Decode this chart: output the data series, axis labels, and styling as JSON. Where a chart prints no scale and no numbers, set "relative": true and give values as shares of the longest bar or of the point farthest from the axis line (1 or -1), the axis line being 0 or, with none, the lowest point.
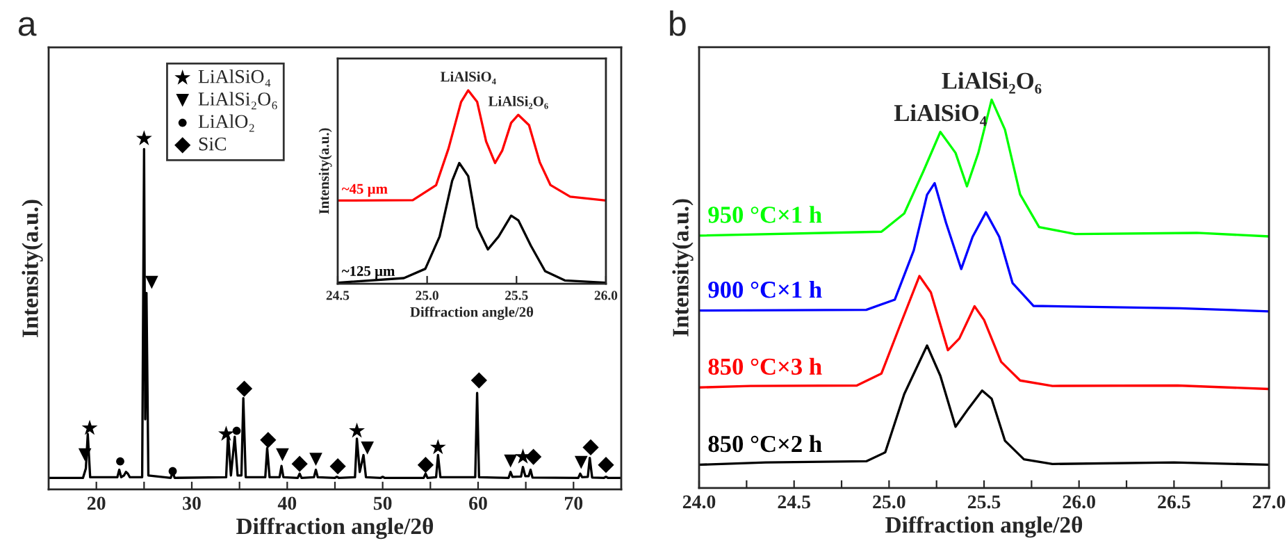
{
  "chart_data": [
    {
      "type": "line",
      "title": "a",
      "xlabel": "Diffraction angle/2θ",
      "ylabel": "Intensity(a.u.)",
      "relative": true,
      "xlim": [
        15,
        75
      ],
      "xticks": [
        20,
        {
          "value": 25,
          "label": null
        },
        30,
        {
          "value": 35,
          "label": null
        },
        40,
        {
          "value": 45,
          "label": null
        },
        50,
        {
          "value": 55,
          "label": null
        },
        60,
        {
          "value": 65,
          "label": null
        },
        70
      ],
      "legend": "top left",
      "series": [
        {
          "color": "#000000",
          "x": [
            15.0,
            18.6,
            18.9,
            19.1,
            19.35,
            22.2,
            22.4,
            22.6,
            22.9,
            23.1,
            23.3,
            23.5,
            24.8,
            25.0,
            25.12,
            25.25,
            25.45,
            27.8,
            28.0,
            28.2,
            33.6,
            33.8,
            34.1,
            34.5,
            34.8,
            35.2,
            35.4,
            35.65,
            37.7,
            37.9,
            38.15,
            39.2,
            39.4,
            39.6,
            41.1,
            41.3,
            41.5,
            42.8,
            43.0,
            43.2,
            45.0,
            45.2,
            45.4,
            47.1,
            47.3,
            47.6,
            47.99,
            48.25,
            49.8,
            50.0,
            50.2,
            54.3,
            54.5,
            54.7,
            55.6,
            55.8,
            56.05,
            59.7,
            59.9,
            60.1,
            63.2,
            63.4,
            63.6,
            64.5,
            64.7,
            64.95,
            65.3,
            65.5,
            65.7,
            70.5,
            70.7,
            70.9,
            71.5,
            71.7,
            71.95,
            73.2,
            73.4,
            73.6,
            75.0
          ],
          "values": [
            0.033,
            0.033,
            0.06,
            0.158,
            0.035,
            0.035,
            0.056,
            0.035,
            0.04,
            0.05,
            0.045,
            0.035,
            0.035,
            0.97,
            0.2,
            0.56,
            0.04,
            0.033,
            0.05,
            0.033,
            0.035,
            0.158,
            0.04,
            0.15,
            0.04,
            0.04,
            0.26,
            0.035,
            0.035,
            0.118,
            0.035,
            0.035,
            0.067,
            0.035,
            0.033,
            0.045,
            0.033,
            0.035,
            0.056,
            0.035,
            0.033,
            0.036,
            0.033,
            0.035,
            0.145,
            0.05,
            0.098,
            0.035,
            0.033,
            0.036,
            0.033,
            0.033,
            0.045,
            0.033,
            0.035,
            0.098,
            0.035,
            0.035,
            0.275,
            0.035,
            0.033,
            0.05,
            0.036,
            0.037,
            0.064,
            0.038,
            0.038,
            0.056,
            0.034,
            0.033,
            0.045,
            0.035,
            0.036,
            0.09,
            0.034,
            0.033,
            0.036,
            0.033,
            0.033
          ]
        },
        {
          "type": "scatter",
          "name": "LiAlSiO₄",
          "marker": "star",
          "color": "#000000",
          "x": [
            19.3,
            25.0,
            33.6,
            47.3,
            55.8,
            64.7
          ],
          "values": [
            0.175,
            1.0,
            0.158,
            0.167,
            0.12,
            0.093
          ]
        },
        {
          "type": "scatter",
          "name": "LiAlSi₂O₆",
          "marker": "triangle",
          "color": "#000000",
          "x": [
            18.8,
            25.8,
            39.5,
            43.0,
            48.4,
            63.4,
            70.8
          ],
          "values": [
            0.099,
            0.59,
            0.099,
            0.086,
            0.118,
            0.081,
            0.077
          ]
        },
        {
          "type": "scatter",
          "name": "LiAlO₂",
          "marker": "circle",
          "color": "#000000",
          "x": [
            22.5,
            28.0,
            34.7
          ],
          "values": [
            0.08,
            0.052,
            0.167
          ]
        },
        {
          "type": "scatter",
          "name": "SiC",
          "marker": "diamond",
          "color": "#000000",
          "x": [
            35.5,
            38.0,
            41.3,
            45.3,
            54.5,
            60.1,
            65.8,
            71.8,
            73.4
          ],
          "values": [
            0.287,
            0.141,
            0.073,
            0.066,
            0.07,
            0.311,
            0.093,
            0.12,
            0.07
          ]
        }
      ]
    },
    {
      "type": "line",
      "xlabel": "Diffraction angle/2θ",
      "ylabel": "Intensity(a.u.)",
      "relative": true,
      "xlim": [
        24.5,
        26.0
      ],
      "xticks": [
        24.5,
        {
          "value": 25.0,
          "label": "25.0"
        },
        25.5,
        {
          "value": 26.0,
          "label": "26.0"
        }
      ],
      "annotations": [
        {
          "text": "LiAlSiO₄",
          "x": 25.23,
          "y": 1.0
        },
        {
          "text": "LiAlSi₂O₆",
          "x": 25.51,
          "y": 0.873
        }
      ],
      "series": [
        {
          "name": "~45 µm",
          "color": "#ff0000",
          "x": [
            24.5,
            24.92,
            25.05,
            25.12,
            25.19,
            25.23,
            25.28,
            25.33,
            25.38,
            25.42,
            25.47,
            25.51,
            25.57,
            25.63,
            25.69,
            25.8,
            26.0
          ],
          "values": [
            0.43,
            0.432,
            0.509,
            0.7,
            0.94,
            1.0,
            0.94,
            0.736,
            0.624,
            0.688,
            0.832,
            0.873,
            0.82,
            0.628,
            0.51,
            0.45,
            0.43
          ]
        },
        {
          "name": "~125 µm",
          "color": "#000000",
          "x": [
            24.5,
            24.87,
            24.99,
            25.07,
            25.14,
            25.18,
            25.23,
            25.28,
            25.34,
            25.4,
            25.47,
            25.51,
            25.58,
            25.66,
            25.77,
            26.0
          ],
          "values": [
            0.005,
            0.029,
            0.077,
            0.244,
            0.532,
            0.624,
            0.556,
            0.292,
            0.177,
            0.244,
            0.352,
            0.328,
            0.197,
            0.065,
            0.017,
            0.005
          ]
        }
      ]
    },
    {
      "type": "line",
      "title": "b",
      "xlabel": "Diffraction angle/2θ",
      "ylabel": "Intensity(a.u.)",
      "relative": true,
      "xlim": [
        24.0,
        27.0
      ],
      "xticks": [
        {
          "value": 24.0,
          "label": "24.0"
        },
        {
          "value": 24.25,
          "label": null
        },
        24.5,
        {
          "value": 24.75,
          "label": null
        },
        {
          "value": 25.0,
          "label": "25.0"
        },
        {
          "value": 25.25,
          "label": null
        },
        25.5,
        {
          "value": 25.75,
          "label": null
        },
        {
          "value": 26.0,
          "label": "26.0"
        },
        {
          "value": 26.25,
          "label": null
        },
        26.5,
        {
          "value": 26.75,
          "label": null
        },
        {
          "value": 27.0,
          "label": "27.0"
        }
      ],
      "annotations": [
        {
          "text": "LiAlSiO₄",
          "x": 25.27,
          "y": 0.917
        },
        {
          "text": "LiAlSi₂O₆",
          "x": 25.54,
          "y": 1.0
        }
      ],
      "series": [
        {
          "name": "850 °C×2 h",
          "color": "#000000",
          "x": [
            24.0,
            24.35,
            24.88,
            24.98,
            25.08,
            25.2,
            25.27,
            25.35,
            25.42,
            25.49,
            25.54,
            25.61,
            25.71,
            25.86,
            26.5,
            27.0
          ],
          "values": [
            0.06,
            0.066,
            0.069,
            0.092,
            0.242,
            0.367,
            0.289,
            0.158,
            0.206,
            0.251,
            0.23,
            0.122,
            0.074,
            0.062,
            0.066,
            0.06
          ]
        },
        {
          "name": "850 °C×3 h",
          "color": "#ff0000",
          "x": [
            24.0,
            24.27,
            24.83,
            24.96,
            25.05,
            25.16,
            25.22,
            25.31,
            25.37,
            25.45,
            25.5,
            25.59,
            25.69,
            25.86,
            26.52,
            27.0
          ],
          "values": [
            0.259,
            0.263,
            0.264,
            0.295,
            0.409,
            0.546,
            0.504,
            0.355,
            0.385,
            0.468,
            0.433,
            0.325,
            0.277,
            0.263,
            0.264,
            0.255
          ]
        },
        {
          "name": "900 °C×1 h",
          "color": "#0000ff",
          "x": [
            24.0,
            24.88,
            25.03,
            25.13,
            25.2,
            25.24,
            25.3,
            25.38,
            25.44,
            25.51,
            25.58,
            25.65,
            25.76,
            26.53,
            27.0
          ],
          "values": [
            0.457,
            0.459,
            0.485,
            0.612,
            0.755,
            0.785,
            0.683,
            0.564,
            0.647,
            0.71,
            0.647,
            0.528,
            0.469,
            0.463,
            0.455
          ]
        },
        {
          "name": "950 °C×1 h",
          "color": "#00ff00",
          "x": [
            24.0,
            24.96,
            25.08,
            25.18,
            25.27,
            25.35,
            25.41,
            25.47,
            25.54,
            25.61,
            25.69,
            25.79,
            25.98,
            26.62,
            27.0
          ],
          "values": [
            0.65,
            0.66,
            0.707,
            0.815,
            0.917,
            0.863,
            0.777,
            0.863,
            1.0,
            0.923,
            0.756,
            0.672,
            0.654,
            0.657,
            0.648
          ]
        }
      ]
    }
  ]
}
